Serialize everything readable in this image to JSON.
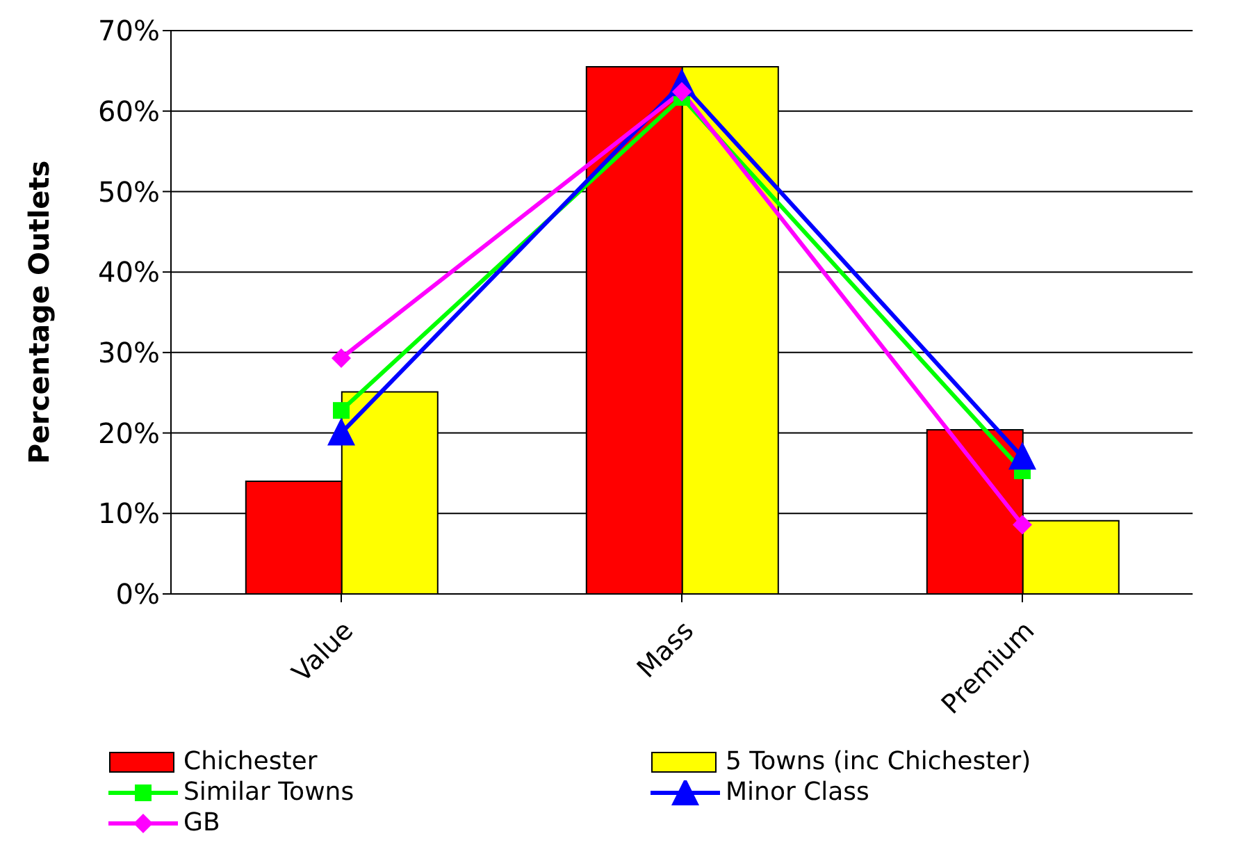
{
  "chart_data": {
    "type": "bar",
    "ylabel": "Percentage Outlets",
    "categories": [
      "Value",
      "Mass",
      "Premium"
    ],
    "series": [
      {
        "name": "Chichester",
        "color": "#ff0000",
        "values": [
          14,
          65.5,
          20.4
        ]
      },
      {
        "name": "5 Towns (inc Chichester)",
        "color": "#ffff00",
        "values": [
          25.1,
          65.5,
          9.1
        ]
      },
      {
        "name": "Similar Towns",
        "type": "line",
        "color": "#00ff00",
        "marker": "square",
        "values": [
          22.8,
          61.7,
          15.3
        ]
      },
      {
        "name": "Minor Class",
        "type": "line",
        "color": "#0000ff",
        "marker": "triangle",
        "values": [
          20,
          63.4,
          17
        ]
      },
      {
        "name": "GB",
        "type": "line",
        "color": "#ff00ff",
        "marker": "diamond",
        "values": [
          29.3,
          62.4,
          8.6
        ]
      }
    ],
    "ylim": [
      0,
      70
    ],
    "yticks": [
      {
        "value": 0,
        "label": "0%"
      },
      {
        "value": 10,
        "label": "10%"
      },
      {
        "value": 20,
        "label": "20%"
      },
      {
        "value": 30,
        "label": "30%"
      },
      {
        "value": 40,
        "label": "40%"
      },
      {
        "value": 50,
        "label": "50%"
      },
      {
        "value": 60,
        "label": "60%"
      },
      {
        "value": 70,
        "label": "70%"
      }
    ],
    "grid": "y",
    "legend": "bottom"
  }
}
